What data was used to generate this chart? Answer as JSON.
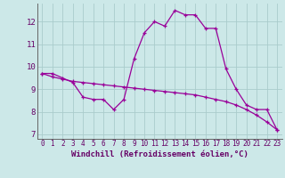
{
  "title": "",
  "xlabel": "Windchill (Refroidissement éolien,°C)",
  "background_color": "#cce8e8",
  "grid_color": "#aacccc",
  "line_color": "#990099",
  "xlim": [
    -0.5,
    23.5
  ],
  "ylim": [
    6.8,
    12.8
  ],
  "xticks": [
    0,
    1,
    2,
    3,
    4,
    5,
    6,
    7,
    8,
    9,
    10,
    11,
    12,
    13,
    14,
    15,
    16,
    17,
    18,
    19,
    20,
    21,
    22,
    23
  ],
  "yticks": [
    7,
    8,
    9,
    10,
    11,
    12
  ],
  "curve1_x": [
    0,
    1,
    2,
    3,
    4,
    5,
    6,
    7,
    8,
    9,
    10,
    11,
    12,
    13,
    14,
    15,
    16,
    17,
    18,
    19,
    20,
    21,
    22,
    23
  ],
  "curve1_y": [
    9.7,
    9.7,
    9.5,
    9.3,
    8.65,
    8.55,
    8.55,
    8.1,
    8.55,
    10.35,
    11.5,
    12.0,
    11.8,
    12.5,
    12.3,
    12.3,
    11.7,
    11.7,
    9.9,
    9.0,
    8.3,
    8.1,
    8.1,
    7.2
  ],
  "curve2_x": [
    0,
    1,
    2,
    3,
    4,
    5,
    6,
    7,
    8,
    9,
    10,
    11,
    12,
    13,
    14,
    15,
    16,
    17,
    18,
    19,
    20,
    21,
    22,
    23
  ],
  "curve2_y": [
    9.7,
    9.55,
    9.45,
    9.35,
    9.3,
    9.25,
    9.2,
    9.15,
    9.1,
    9.05,
    9.0,
    8.95,
    8.9,
    8.85,
    8.8,
    8.75,
    8.65,
    8.55,
    8.45,
    8.3,
    8.1,
    7.85,
    7.55,
    7.2
  ]
}
